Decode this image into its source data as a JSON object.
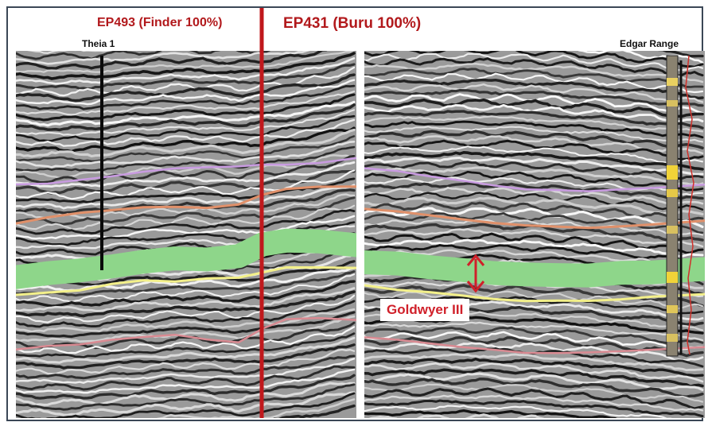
{
  "labels": {
    "lease_left": "EP493 (Finder 100%)",
    "lease_right": "EP431 (Buru 100%)",
    "well_left": "Theia 1",
    "well_right": "Edgar Range",
    "formation": "Goldwyer III"
  },
  "colors": {
    "lease_boundary": "#c0181c",
    "lease_text": "#b2191c",
    "formation_text": "#d0202a",
    "green_horizon": "#8ed68a",
    "purple_horizon": "#c89be0",
    "orange_horizon": "#e0906a",
    "yellow_horizon": "#f3f08a",
    "pink_horizon": "#d98a92",
    "frame": "#3b4756"
  }
}
